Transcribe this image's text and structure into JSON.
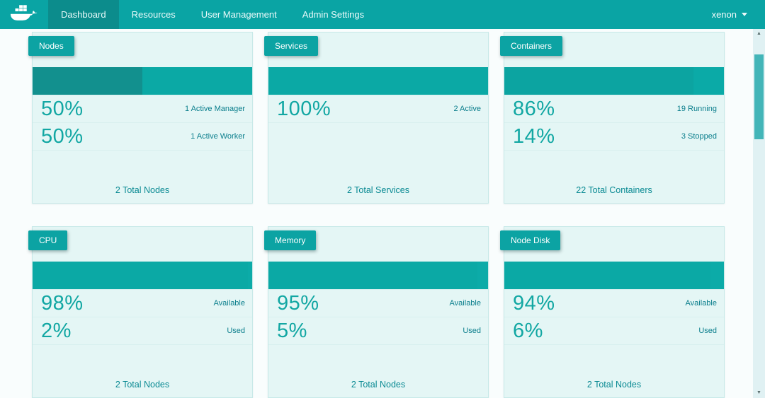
{
  "navbar": {
    "items": [
      {
        "label": "Dashboard",
        "active": true
      },
      {
        "label": "Resources",
        "active": false
      },
      {
        "label": "User Management",
        "active": false
      },
      {
        "label": "Admin Settings",
        "active": false
      }
    ],
    "user": "xenon"
  },
  "cards": [
    {
      "title": "Nodes",
      "bar_segments": [
        {
          "percent": 50,
          "color": "#12908E"
        },
        {
          "percent": 50,
          "color": "#0BA9A5"
        }
      ],
      "stats": [
        {
          "value": "50%",
          "label": "1 Active Manager"
        },
        {
          "value": "50%",
          "label": "1 Active Worker"
        }
      ],
      "footer": "2 Total Nodes"
    },
    {
      "title": "Services",
      "bar_segments": [
        {
          "percent": 100,
          "color": "#0BA9A5"
        }
      ],
      "stats": [
        {
          "value": "100%",
          "label": "2 Active"
        }
      ],
      "footer": "2 Total Services"
    },
    {
      "title": "Containers",
      "bar_segments": [
        {
          "percent": 86,
          "color": "#0CA4A1"
        },
        {
          "percent": 14,
          "color": "#0BAAA7"
        }
      ],
      "stats": [
        {
          "value": "86%",
          "label": "19 Running"
        },
        {
          "value": "14%",
          "label": "3 Stopped"
        }
      ],
      "footer": "22 Total Containers"
    },
    {
      "title": "CPU",
      "bar_segments": [
        {
          "percent": 98,
          "color": "#0BA9A5"
        },
        {
          "percent": 2,
          "color": "#0CABA8"
        }
      ],
      "stats": [
        {
          "value": "98%",
          "label": "Available"
        },
        {
          "value": "2%",
          "label": "Used"
        }
      ],
      "footer": "2 Total Nodes"
    },
    {
      "title": "Memory",
      "bar_segments": [
        {
          "percent": 95,
          "color": "#0BA9A5"
        },
        {
          "percent": 5,
          "color": "#0CABA8"
        }
      ],
      "stats": [
        {
          "value": "95%",
          "label": "Available"
        },
        {
          "value": "5%",
          "label": "Used"
        }
      ],
      "footer": "2 Total Nodes"
    },
    {
      "title": "Node Disk",
      "bar_segments": [
        {
          "percent": 94,
          "color": "#0BA9A5"
        },
        {
          "percent": 6,
          "color": "#0CABA8"
        }
      ],
      "stats": [
        {
          "value": "94%",
          "label": "Available"
        },
        {
          "value": "6%",
          "label": "Used"
        }
      ],
      "footer": "2 Total Nodes"
    }
  ],
  "colors": {
    "navbar": "#0AA4A4",
    "navbar_active": "#0C8C8C",
    "card_background": "#E4F6F5",
    "badge": "#0CA3A3",
    "accent_text": "#12A7A3",
    "scroll_thumb": "#43B5B8"
  }
}
